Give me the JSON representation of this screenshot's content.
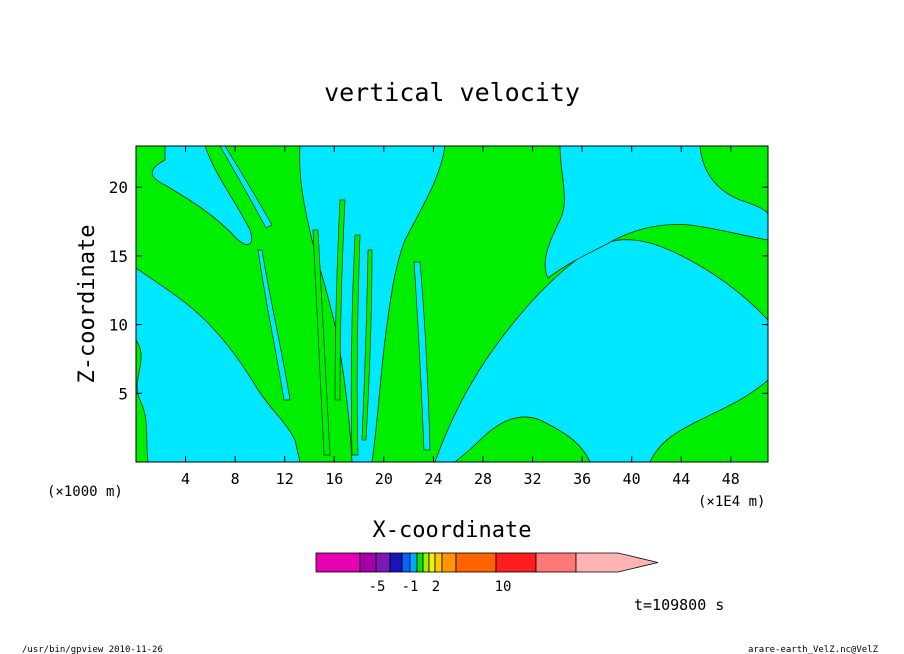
{
  "chart_data": {
    "type": "heatmap",
    "title": "vertical velocity",
    "xlabel": "X-coordinate",
    "ylabel": "Z-coordinate",
    "x_unit_left": "(×1000 m)",
    "x_unit_right": "(×1E4 m)",
    "xlim": [
      0,
      51
    ],
    "ylim": [
      0,
      23
    ],
    "x_ticks": [
      4,
      8,
      12,
      16,
      20,
      24,
      28,
      32,
      36,
      40,
      44,
      48
    ],
    "y_ticks": [
      5,
      10,
      15,
      20
    ],
    "colorbar": {
      "colors": [
        "#e600b4",
        "#a400aa",
        "#7a18b8",
        "#1a14b8",
        "#0064ff",
        "#00aaff",
        "#00e600",
        "#99f000",
        "#f0f000",
        "#ffc800",
        "#ff9600",
        "#ff6400",
        "#ff1e1e",
        "#ff7878",
        "#ffb4b4"
      ],
      "tick_labels": [
        "-5",
        "-1",
        "2",
        "10"
      ]
    },
    "dominant_levels": [
      {
        "name": "cyan",
        "color": "#00e8ff"
      },
      {
        "name": "green",
        "color": "#00ee00"
      }
    ]
  },
  "time_label": "t=109800 s",
  "footer": {
    "left": "/usr/bin/gpview   2010-11-26",
    "right": "arare-earth_VelZ.nc@VelZ"
  }
}
